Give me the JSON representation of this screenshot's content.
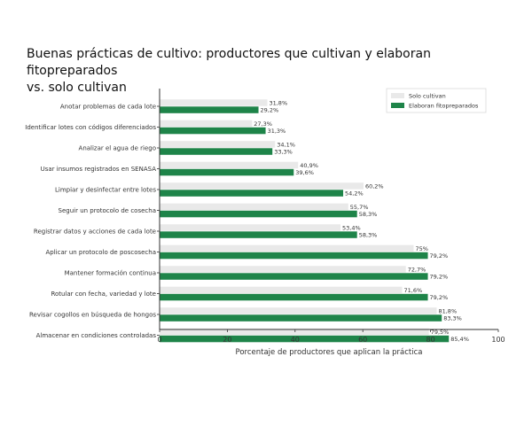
{
  "chart_data": {
    "type": "bar",
    "orientation": "horizontal",
    "title_line1": "Buenas prácticas de cultivo: productores que cultivan y elaboran fitopreparados",
    "title_line2": "vs. solo cultivan",
    "xlabel": "Porcentaje de productores que aplican la práctica",
    "xlim": [
      0,
      100
    ],
    "xticks": [
      "0",
      "20",
      "40",
      "60",
      "80",
      "100"
    ],
    "legend_position": "top-right",
    "categories": [
      "Anotar problemas de cada lote",
      "Identificar lotes con códigos diferenciados",
      "Analizar el agua de riego",
      "Usar insumos registrados en SENASA",
      "Limpiar y desinfectar entre lotes",
      "Seguir un protocolo de cosecha",
      "Registrar datos y acciones de cada lote",
      "Aplicar un protocolo de poscosecha",
      "Mantener formación continua",
      "Rotular con fecha, variedad y lote",
      "Revisar cogollos en búsqueda de hongos",
      "Almacenar en condiciones controladas"
    ],
    "series": [
      {
        "name": "Solo cultivan",
        "color": "#e9e9e9",
        "values": [
          31.8,
          27.3,
          34.1,
          40.9,
          60.2,
          55.7,
          53.4,
          75,
          72.7,
          71.6,
          81.8,
          79.5
        ],
        "labels": [
          "31,8%",
          "27,3%",
          "34,1%",
          "40,9%",
          "60,2%",
          "55,7%",
          "53,4%",
          "75%",
          "72,7%",
          "71,6%",
          "81,8%",
          "79,5%"
        ]
      },
      {
        "name": "Elaboran fitopreparados",
        "color": "#1e8449",
        "values": [
          29.2,
          31.3,
          33.3,
          39.6,
          54.2,
          58.3,
          58.3,
          79.2,
          79.2,
          79.2,
          83.3,
          85.4
        ],
        "labels": [
          "29,2%",
          "31,3%",
          "33,3%",
          "39,6%",
          "54,2%",
          "58,3%",
          "58,3%",
          "79,2%",
          "79,2%",
          "79,2%",
          "83,3%",
          "85,4%"
        ]
      }
    ]
  }
}
